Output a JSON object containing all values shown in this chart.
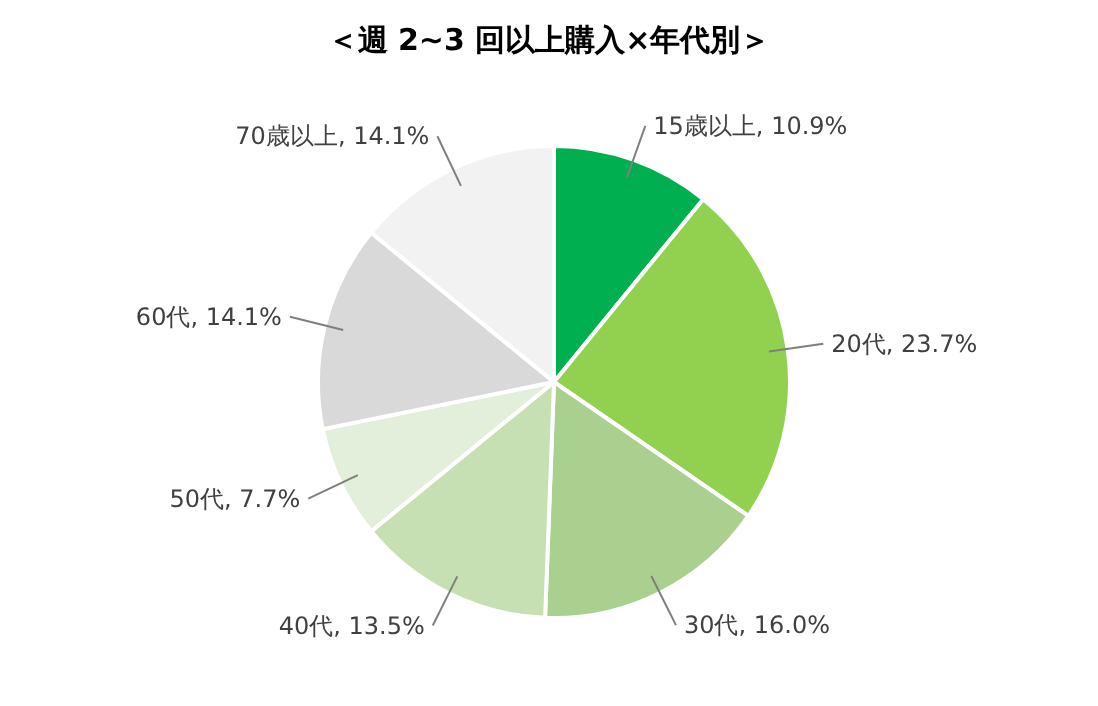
{
  "chart_data": {
    "type": "pie",
    "title": "＜週 2~3 回以上購入×年代別＞",
    "categories": [
      "15歳以上",
      "20代",
      "30代",
      "40代",
      "50代",
      "60代",
      "70歳以上"
    ],
    "values": [
      10.9,
      23.7,
      16.0,
      13.5,
      7.7,
      14.1,
      14.1
    ],
    "value_labels": [
      "10.9%",
      "23.7%",
      "16.0%",
      "13.5%",
      "7.7%",
      "14.1%",
      "14.1%"
    ],
    "colors": [
      "#00b050",
      "#92d050",
      "#a9d08e",
      "#c6e0b4",
      "#e2efda",
      "#d9d9d9",
      "#f2f2f2"
    ],
    "legend": false
  }
}
